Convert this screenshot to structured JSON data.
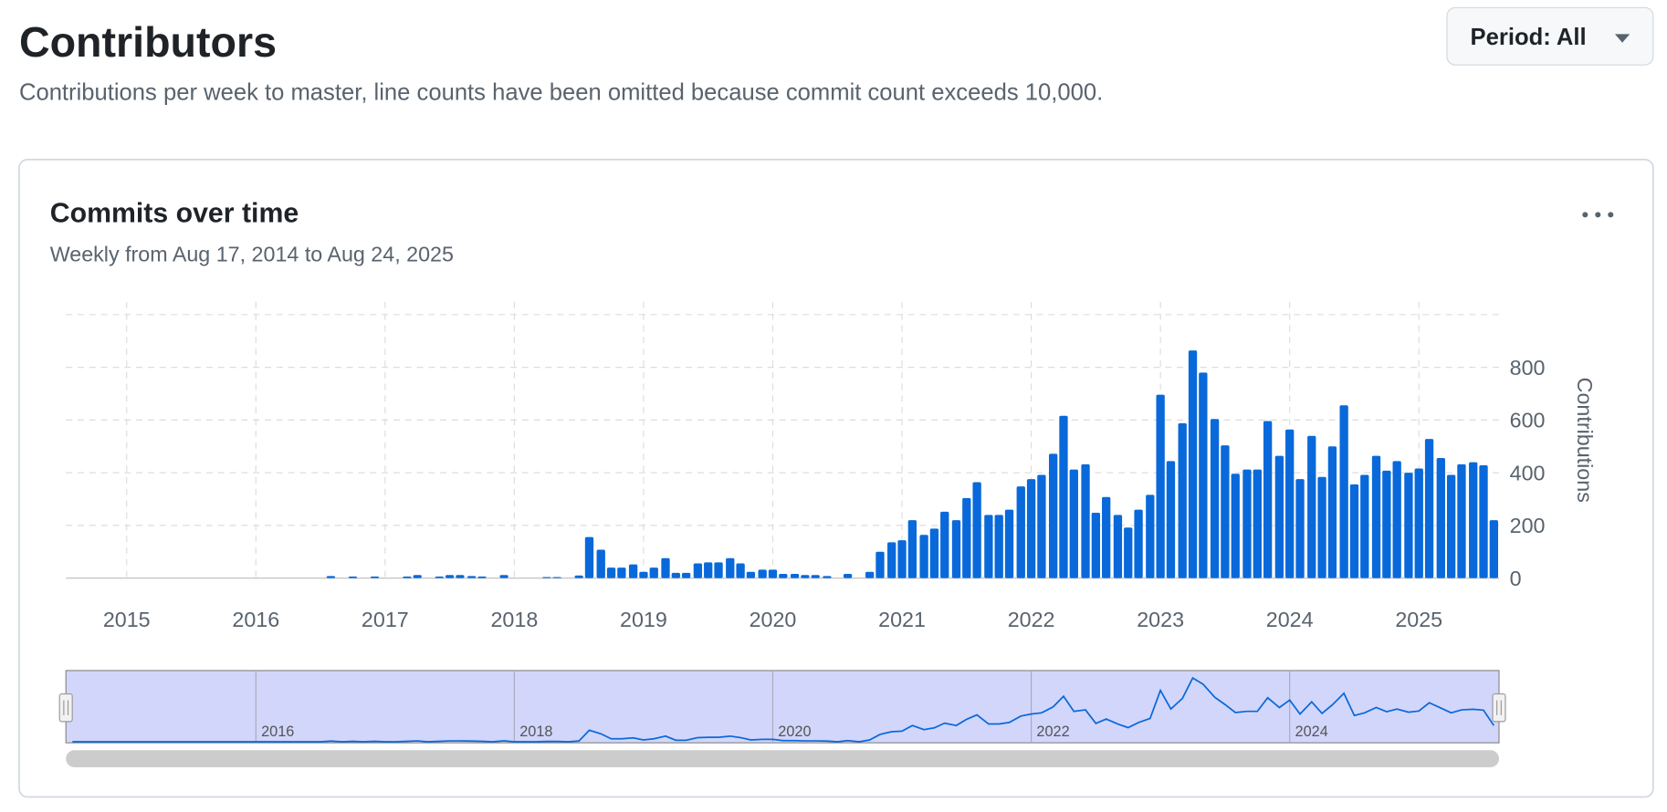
{
  "header": {
    "title": "Contributors",
    "subtitle": "Contributions per week to master, line counts have been omitted because commit count exceeds 10,000.",
    "period_button": "Period: All"
  },
  "chart_data": {
    "type": "bar",
    "title": "Commits over time",
    "subtitle": "Weekly from Aug 17, 2014 to Aug 24, 2025",
    "y_label": "Contributions",
    "color": "#0969da",
    "grid": true,
    "x": [
      2014.58,
      2014.67,
      2014.75,
      2014.83,
      2014.92,
      2015.0,
      2015.08,
      2015.17,
      2015.25,
      2015.33,
      2015.42,
      2015.5,
      2015.58,
      2015.67,
      2015.75,
      2015.83,
      2015.92,
      2016.0,
      2016.08,
      2016.17,
      2016.25,
      2016.33,
      2016.42,
      2016.5,
      2016.58,
      2016.67,
      2016.75,
      2016.83,
      2016.92,
      2017.0,
      2017.08,
      2017.17,
      2017.25,
      2017.33,
      2017.42,
      2017.5,
      2017.58,
      2017.67,
      2017.75,
      2017.83,
      2017.92,
      2018.0,
      2018.08,
      2018.17,
      2018.25,
      2018.33,
      2018.42,
      2018.5,
      2018.58,
      2018.67,
      2018.75,
      2018.83,
      2018.92,
      2019.0,
      2019.08,
      2019.17,
      2019.25,
      2019.33,
      2019.42,
      2019.5,
      2019.58,
      2019.67,
      2019.75,
      2019.83,
      2019.92,
      2020.0,
      2020.08,
      2020.17,
      2020.25,
      2020.33,
      2020.42,
      2020.5,
      2020.58,
      2020.67,
      2020.75,
      2020.83,
      2020.92,
      2021.0,
      2021.08,
      2021.17,
      2021.25,
      2021.33,
      2021.42,
      2021.5,
      2021.58,
      2021.67,
      2021.75,
      2021.83,
      2021.92,
      2022.0,
      2022.08,
      2022.17,
      2022.25,
      2022.33,
      2022.42,
      2022.5,
      2022.58,
      2022.67,
      2022.75,
      2022.83,
      2022.92,
      2023.0,
      2023.08,
      2023.17,
      2023.25,
      2023.33,
      2023.42,
      2023.5,
      2023.58,
      2023.67,
      2023.75,
      2023.83,
      2023.92,
      2024.0,
      2024.08,
      2024.17,
      2024.25,
      2024.33,
      2024.42,
      2024.5,
      2024.58,
      2024.67,
      2024.75,
      2024.83,
      2024.92,
      2025.0,
      2025.08,
      2025.17,
      2025.25,
      2025.33,
      2025.42,
      2025.5,
      2025.58
    ],
    "values": [
      0,
      0,
      0,
      0,
      0,
      0,
      0,
      0,
      0,
      0,
      0,
      0,
      0,
      0,
      0,
      0,
      0,
      0,
      0,
      0,
      0,
      0,
      0,
      0,
      8,
      0,
      6,
      0,
      6,
      0,
      0,
      6,
      12,
      0,
      6,
      12,
      12,
      8,
      6,
      0,
      12,
      0,
      0,
      0,
      4,
      4,
      0,
      10,
      156,
      108,
      40,
      40,
      52,
      24,
      40,
      76,
      20,
      20,
      56,
      60,
      60,
      76,
      56,
      24,
      32,
      32,
      16,
      16,
      12,
      12,
      8,
      0,
      16,
      0,
      24,
      100,
      136,
      144,
      220,
      164,
      188,
      252,
      220,
      304,
      364,
      240,
      240,
      260,
      348,
      376,
      392,
      472,
      616,
      412,
      432,
      248,
      308,
      240,
      192,
      260,
      316,
      696,
      444,
      588,
      864,
      780,
      604,
      504,
      396,
      412,
      412,
      596,
      464,
      564,
      376,
      540,
      384,
      500,
      656,
      356,
      392,
      464,
      408,
      444,
      400,
      416,
      528,
      456,
      392,
      432,
      440,
      428,
      220
    ],
    "xlim": [
      2014.53,
      2025.62
    ],
    "xticks": [
      2015,
      2016,
      2017,
      2018,
      2019,
      2020,
      2021,
      2022,
      2023,
      2024,
      2025
    ],
    "ylim": [
      0,
      1000
    ],
    "yticks": [
      0,
      200,
      400,
      600,
      800
    ],
    "navigator_xticks": [
      2016,
      2018,
      2020,
      2022,
      2024
    ]
  }
}
